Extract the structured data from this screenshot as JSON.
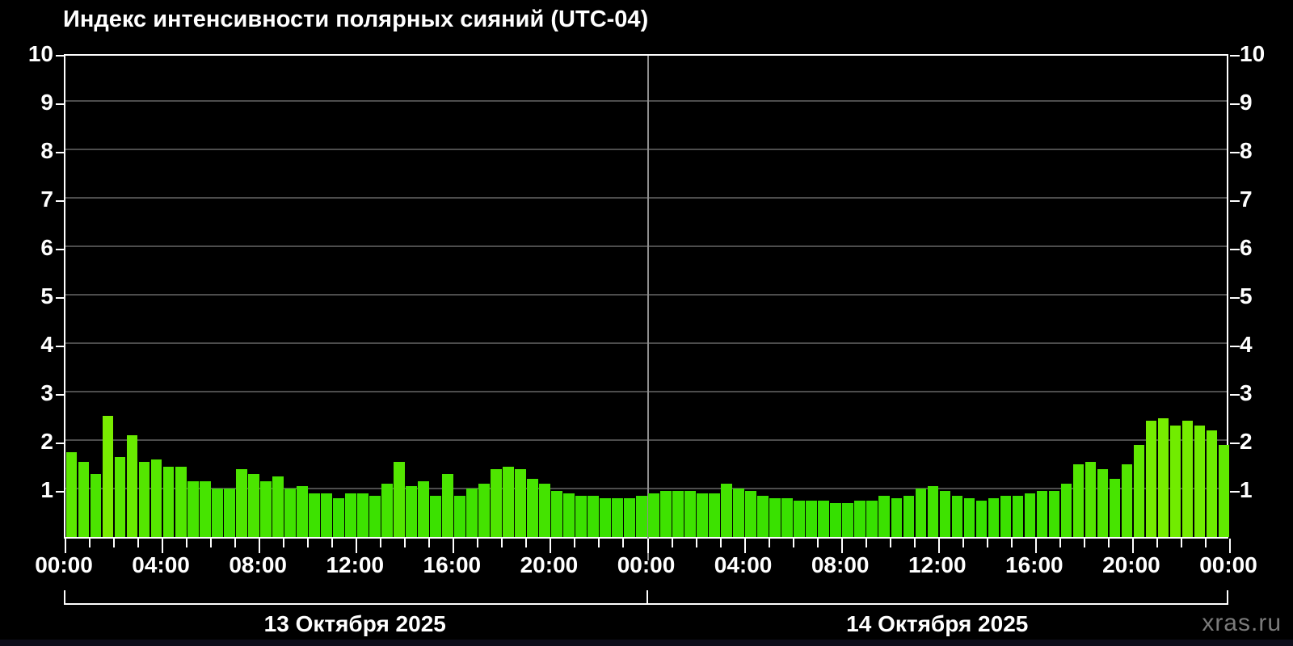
{
  "title": "Индекс интенсивности полярных сияний (UTC-04)",
  "watermark": "xras.ru",
  "colors": {
    "background": "#000000",
    "axis": "#ffffff",
    "gridline": "#4d4d4d",
    "day_separator": "#8f8f8f",
    "bar_low": "#22dc00",
    "bar_high": "#84e900",
    "watermark_text": "#7b7b7b"
  },
  "y_axis": {
    "labels": [
      "1",
      "2",
      "3",
      "4",
      "5",
      "6",
      "7",
      "8",
      "9",
      "10"
    ],
    "min": 0,
    "max": 10
  },
  "x_axis": {
    "major_tick_labels": [
      "00:00",
      "04:00",
      "08:00",
      "12:00",
      "16:00",
      "20:00",
      "00:00",
      "04:00",
      "08:00",
      "12:00",
      "16:00",
      "20:00",
      "00:00"
    ],
    "minor_tick_interval_hours": 1,
    "major_tick_interval_hours": 4
  },
  "chart_data": {
    "type": "bar",
    "title": "Индекс интенсивности полярных сияний (UTC-04)",
    "xlabel": "",
    "ylabel": "",
    "ylim": [
      0,
      10
    ],
    "grid": true,
    "interval_minutes": 30,
    "categories": [
      "13 Октября 2025",
      "14 Октября 2025"
    ],
    "series": [
      {
        "name": "13 Октября 2025",
        "values": [
          1.75,
          1.55,
          1.3,
          2.5,
          1.65,
          2.1,
          1.55,
          1.6,
          1.45,
          1.45,
          1.15,
          1.15,
          1.0,
          1.0,
          1.4,
          1.3,
          1.15,
          1.25,
          1.0,
          1.05,
          0.9,
          0.9,
          0.8,
          0.9,
          0.9,
          0.85,
          1.1,
          1.55,
          1.05,
          1.15,
          0.85,
          1.3,
          0.85,
          1.0,
          1.1,
          1.4,
          1.45,
          1.4,
          1.2,
          1.1,
          0.95,
          0.9,
          0.85,
          0.85,
          0.8,
          0.8,
          0.8,
          0.85
        ]
      },
      {
        "name": "14 Октября 2025",
        "values": [
          0.9,
          0.95,
          0.95,
          0.95,
          0.9,
          0.9,
          1.1,
          1.0,
          0.95,
          0.85,
          0.8,
          0.8,
          0.75,
          0.75,
          0.75,
          0.7,
          0.7,
          0.75,
          0.75,
          0.85,
          0.8,
          0.85,
          1.0,
          1.05,
          0.95,
          0.85,
          0.8,
          0.75,
          0.8,
          0.85,
          0.85,
          0.9,
          0.95,
          0.95,
          1.1,
          1.5,
          1.55,
          1.4,
          1.2,
          1.5,
          1.9,
          2.4,
          2.45,
          2.3,
          2.4,
          2.3,
          2.2,
          1.9
        ]
      }
    ]
  }
}
